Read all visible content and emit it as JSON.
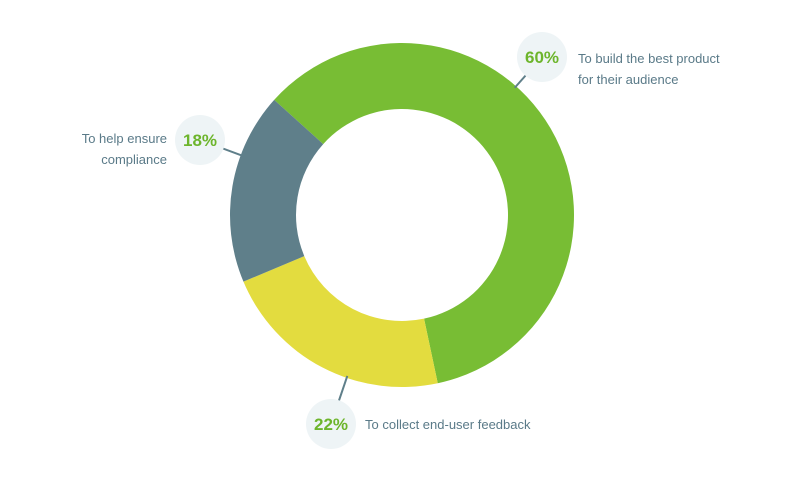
{
  "chart_data": {
    "type": "pie",
    "subtype": "donut",
    "slices": [
      {
        "name": "To build the best product for their audience",
        "label_lines": [
          "To build the best product",
          "for their audience"
        ],
        "value": 60,
        "percent_label": "60%",
        "color": "#78bd34"
      },
      {
        "name": "To collect end-user feedback",
        "label_lines": [
          "To collect end-user feedback"
        ],
        "value": 22,
        "percent_label": "22%",
        "color": "#e3dc3f"
      },
      {
        "name": "To help ensure compliance",
        "label_lines": [
          "To help ensure",
          "compliance"
        ],
        "value": 18,
        "percent_label": "18%",
        "color": "#5f7f8a"
      }
    ],
    "start_angle_deg": -48,
    "direction": "clockwise",
    "title": "",
    "legend": "none"
  },
  "style": {
    "percent_text_color": "#6db52c",
    "badge_fill": "#eef4f6",
    "leader_color": "#5f7f8a",
    "label_text_color": "#5a7a88"
  }
}
